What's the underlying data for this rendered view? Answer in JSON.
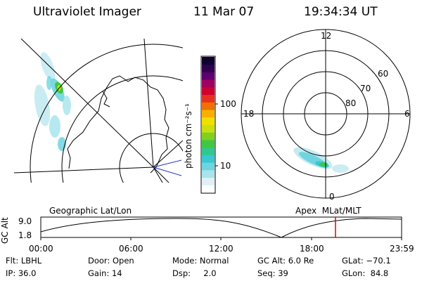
{
  "header": {
    "instrument": "Ultraviolet Imager",
    "date": "11 Mar 07",
    "time": "19:34:34 UT"
  },
  "colorbar": {
    "unit_label": "photon cm⁻²s⁻¹",
    "ticks": [
      "100",
      "10"
    ],
    "colors": [
      "#ffffff",
      "#e0f0f4",
      "#a8e4ec",
      "#70d4e0",
      "#38c8d0",
      "#30c890",
      "#40c840",
      "#80d020",
      "#c8e010",
      "#f0e000",
      "#f8b000",
      "#f07000",
      "#e83020",
      "#d00030",
      "#a00060",
      "#600070",
      "#300050",
      "#100030"
    ]
  },
  "left_panel": {
    "label": "Geographic Lat/Lon"
  },
  "right_panel": {
    "label": "Apex  MLat/MLT",
    "mlt_labels": {
      "top": "12",
      "left": "18",
      "right": "6",
      "bottom": "0"
    },
    "lat_labels": [
      "60",
      "70",
      "80"
    ]
  },
  "altitude_plot": {
    "ylabel": "GC Alt",
    "yticks": [
      "9.0",
      "1.8"
    ],
    "xticks": [
      "00:00",
      "06:00",
      "12:00",
      "18:00",
      "23:59"
    ],
    "current_time_marker": "19:34",
    "marker_color": "#e00000"
  },
  "status": {
    "filter": "Flt: LBHL",
    "ip": "IP: 36.0",
    "door": "Door: Open",
    "gain": "Gain: 14",
    "mode": "Mode: Normal",
    "dsp": "Dsp:     2.0",
    "gc_alt": "GC Alt: 6.0 Re",
    "seq": "Seq: 39",
    "glat": "GLat: −70.1",
    "glon": "GLon:  84.8"
  }
}
